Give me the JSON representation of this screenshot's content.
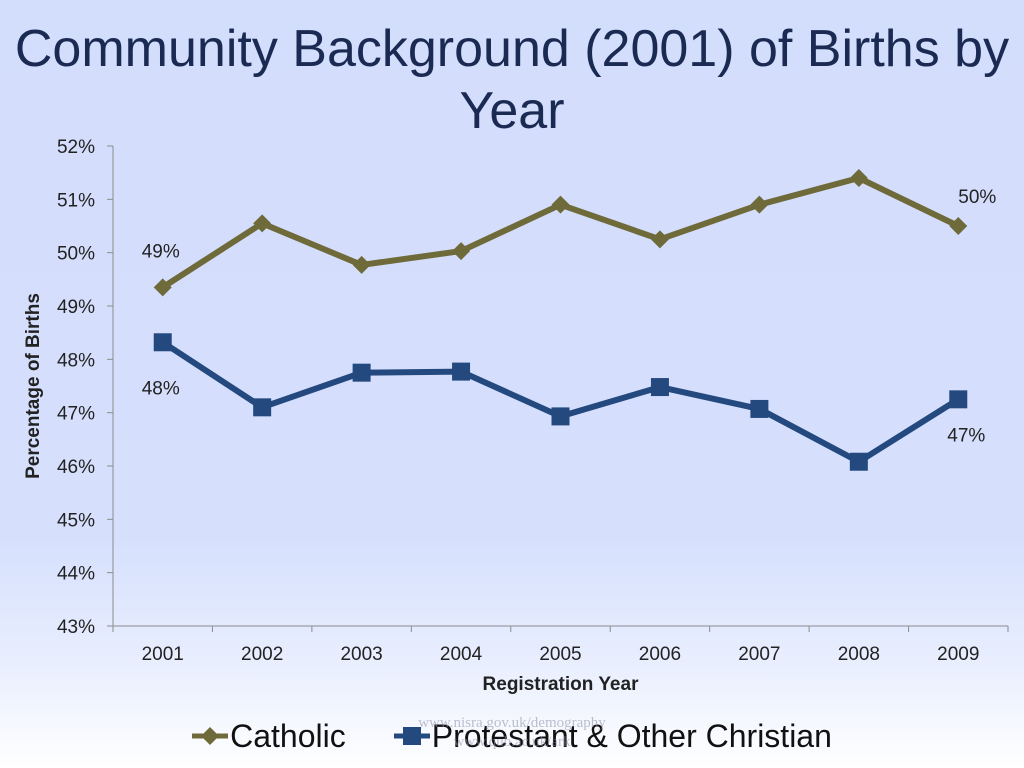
{
  "chart_data": {
    "type": "line",
    "title": "Community Background (2001) of Births by Year",
    "xlabel": "Registration Year",
    "ylabel": "Percentage of Births",
    "categories": [
      "2001",
      "2002",
      "2003",
      "2004",
      "2005",
      "2006",
      "2007",
      "2008",
      "2009"
    ],
    "ylim": [
      43,
      52
    ],
    "yticks": [
      "43%",
      "44%",
      "45%",
      "46%",
      "47%",
      "48%",
      "49%",
      "50%",
      "51%",
      "52%"
    ],
    "grid": false,
    "legend": "bottom",
    "series": [
      {
        "name": "Catholic",
        "color": "#6f6a3a",
        "marker": "diamond",
        "values": [
          49.35,
          50.55,
          49.77,
          50.03,
          50.9,
          50.25,
          50.9,
          51.4,
          50.5
        ],
        "labels": [
          {
            "index": 0,
            "text": "49%"
          },
          {
            "index": 8,
            "text": "50%"
          }
        ]
      },
      {
        "name": "Protestant & Other Christian",
        "color": "#24497f",
        "marker": "square",
        "values": [
          48.32,
          47.1,
          47.75,
          47.77,
          46.93,
          47.48,
          47.07,
          46.08,
          47.25
        ],
        "labels": [
          {
            "index": 0,
            "text": "48%"
          },
          {
            "index": 8,
            "text": "47%"
          }
        ]
      }
    ]
  },
  "watermark": {
    "line1": "www.nisra.gov.uk/demography",
    "line2": "www.qub.ac.uk/ark"
  }
}
